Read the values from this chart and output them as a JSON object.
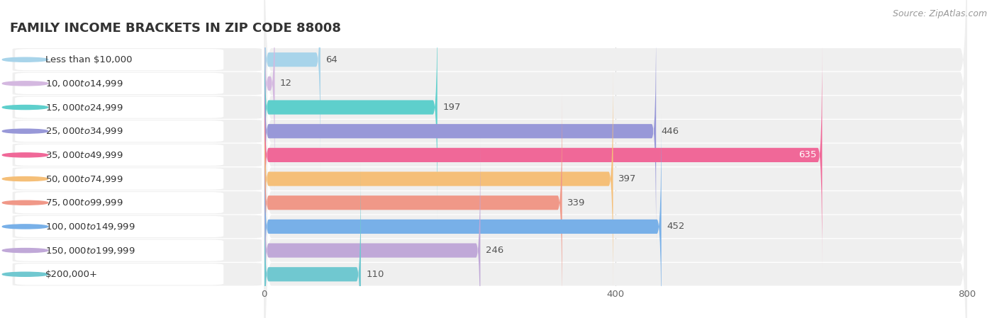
{
  "title": "FAMILY INCOME BRACKETS IN ZIP CODE 88008",
  "source": "Source: ZipAtlas.com",
  "categories": [
    "Less than $10,000",
    "$10,000 to $14,999",
    "$15,000 to $24,999",
    "$25,000 to $34,999",
    "$35,000 to $49,999",
    "$50,000 to $74,999",
    "$75,000 to $99,999",
    "$100,000 to $149,999",
    "$150,000 to $199,999",
    "$200,000+"
  ],
  "values": [
    64,
    12,
    197,
    446,
    635,
    397,
    339,
    452,
    246,
    110
  ],
  "bar_colors": [
    "#a8d4ea",
    "#d4b8e0",
    "#5ecfcc",
    "#9898d8",
    "#f06898",
    "#f5bf78",
    "#f09888",
    "#78b0e8",
    "#c0a8d8",
    "#70c8d0"
  ],
  "label_pill_color": "#ffffff",
  "row_bg_color": "#efefef",
  "row_bg_color2": "#f7f7f7",
  "data_max": 800,
  "xticks": [
    0,
    400,
    800
  ],
  "background_color": "#ffffff",
  "title_fontsize": 13,
  "label_fontsize": 9.5,
  "value_fontsize": 9.5,
  "source_fontsize": 9,
  "value_color_inside": "#ffffff",
  "value_color_outside": "#555555"
}
